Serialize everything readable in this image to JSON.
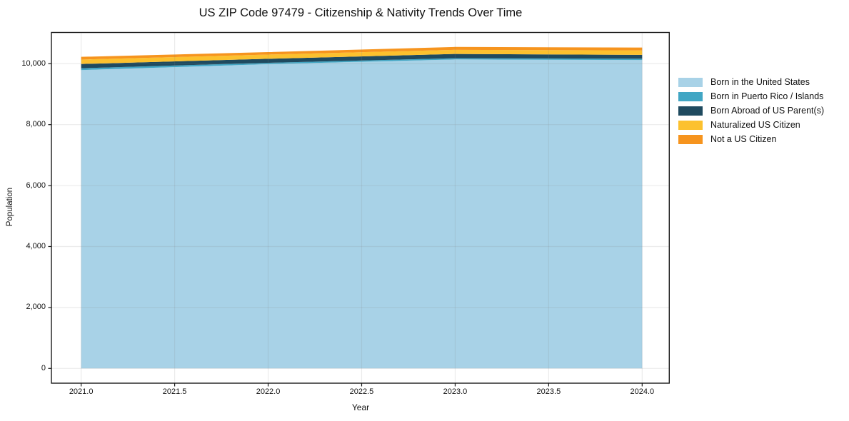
{
  "figure": {
    "title": "US ZIP Code 97479 - Citizenship & Nativity Trends Over Time",
    "xlabel": "Year",
    "ylabel": "Population"
  },
  "chart_data": {
    "type": "area",
    "stacked": true,
    "title": "US ZIP Code 97479 - Citizenship & Nativity Trends Over Time",
    "xlabel": "Year",
    "ylabel": "Population",
    "grid": true,
    "legend_position": "right-outside",
    "x": [
      2021,
      2022,
      2023,
      2024
    ],
    "series": [
      {
        "name": "Born in the United States",
        "color": "#a8d2e7",
        "values": [
          9790,
          9985,
          10140,
          10120
        ]
      },
      {
        "name": "Born in Puerto Rico / Islands",
        "color": "#41a6c4",
        "values": [
          60,
          45,
          40,
          45
        ]
      },
      {
        "name": "Born Abroad of US Parent(s)",
        "color": "#1f4a5f",
        "values": [
          140,
          130,
          140,
          125
        ]
      },
      {
        "name": "Naturalized US Citizen",
        "color": "#fcc12e",
        "values": [
          145,
          140,
          135,
          145
        ]
      },
      {
        "name": "Not a US Citizen",
        "color": "#f6941e",
        "values": [
          90,
          80,
          95,
          95
        ]
      }
    ],
    "totals": [
      10225,
      10380,
      10550,
      10530
    ],
    "xlim": [
      2020.841,
      2024.145
    ],
    "ylim": [
      -485,
      11025
    ],
    "x_tick_values": [
      2021.0,
      2021.5,
      2022.0,
      2022.5,
      2023.0,
      2023.5,
      2024.0
    ],
    "x_tick_labels": [
      "2021.0",
      "2021.5",
      "2022.0",
      "2022.5",
      "2023.0",
      "2023.5",
      "2024.0"
    ],
    "y_tick_values": [
      0,
      2000,
      4000,
      6000,
      8000,
      10000
    ],
    "y_tick_labels": [
      "0",
      "2,000",
      "4,000",
      "6,000",
      "8,000",
      "10,000"
    ],
    "colors": {
      "spine": "#1a1a1a",
      "gridline": "rgba(128,128,128,0.16)",
      "background": "#ffffff"
    }
  }
}
